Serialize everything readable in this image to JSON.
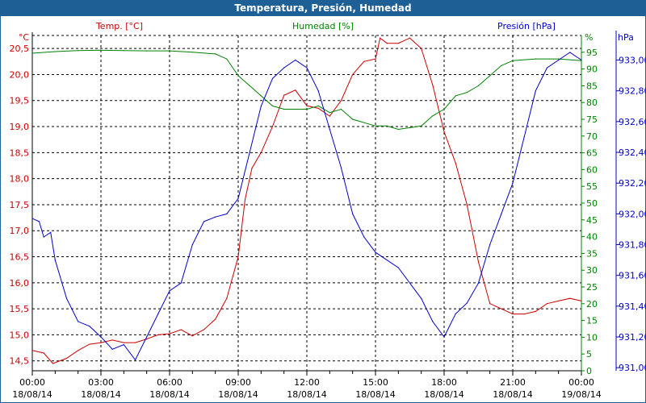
{
  "window": {
    "title": "Temperatura, Presión, Humedad"
  },
  "chart_data": {
    "type": "line",
    "title": "Temperatura, Presión, Humedad",
    "xlabel": "",
    "x_ticks": [
      {
        "time": "00:00",
        "date": "18/08/14"
      },
      {
        "time": "03:00",
        "date": "18/08/14"
      },
      {
        "time": "06:00",
        "date": "18/08/14"
      },
      {
        "time": "09:00",
        "date": "18/08/14"
      },
      {
        "time": "12:00",
        "date": "18/08/14"
      },
      {
        "time": "15:00",
        "date": "18/08/14"
      },
      {
        "time": "18:00",
        "date": "18/08/14"
      },
      {
        "time": "21:00",
        "date": "18/08/14"
      },
      {
        "time": "00:00",
        "date": "19/08/14"
      }
    ],
    "xlim_hours": [
      0,
      24
    ],
    "grid": true,
    "axes": {
      "temp": {
        "label": "Temp. [°C]",
        "unit": "°C",
        "ylim": [
          14.31,
          20.75
        ],
        "ticks": [
          "14,5",
          "15,0",
          "15,5",
          "16,0",
          "16,5",
          "17,0",
          "17,5",
          "18,0",
          "18,5",
          "19,0",
          "19,5",
          "20,0",
          "20,5"
        ],
        "color": "#d00000"
      },
      "hum": {
        "label": "Humedad [%]",
        "unit": "%",
        "ylim": [
          0,
          100
        ],
        "ticks": [
          "0",
          "5",
          "10",
          "15",
          "20",
          "25",
          "30",
          "35",
          "40",
          "45",
          "50",
          "55",
          "60",
          "65",
          "70",
          "75",
          "80",
          "85",
          "90",
          "95"
        ],
        "color": "#008000"
      },
      "pres": {
        "label": "Presión [hPa]",
        "unit": "hPa",
        "ylim": [
          930.98,
          933.16
        ],
        "ticks": [
          "931,00",
          "931,20",
          "931,40",
          "931,60",
          "931,80",
          "932,00",
          "932,20",
          "932,40",
          "932,60",
          "932,80",
          "933,00"
        ],
        "color": "#0000cc"
      }
    },
    "series": [
      {
        "name": "Temp. [°C]",
        "axis": "temp",
        "color": "#cc0000",
        "x": [
          0,
          0.5,
          0.9,
          1.5,
          2,
          2.5,
          3,
          3.5,
          4,
          4.5,
          5,
          5.5,
          6,
          6.5,
          7,
          7.5,
          8,
          8.5,
          9,
          9.3,
          9.6,
          10,
          10.5,
          11,
          11.5,
          12,
          12.5,
          13,
          13.5,
          14,
          14.5,
          15,
          15.2,
          15.5,
          16,
          16.5,
          17,
          17.5,
          18,
          18.5,
          19,
          19.5,
          20,
          20.5,
          21,
          21.5,
          22,
          22.5,
          23,
          23.5,
          24
        ],
        "y": [
          14.7,
          14.65,
          14.45,
          14.55,
          14.7,
          14.82,
          14.85,
          14.9,
          14.85,
          14.85,
          14.92,
          15.0,
          15.02,
          15.1,
          14.98,
          15.1,
          15.3,
          15.7,
          16.5,
          17.6,
          18.2,
          18.5,
          19.0,
          19.6,
          19.7,
          19.4,
          19.35,
          19.2,
          19.5,
          20.0,
          20.25,
          20.3,
          20.7,
          20.6,
          20.6,
          20.7,
          20.5,
          19.8,
          18.9,
          18.3,
          17.5,
          16.4,
          15.6,
          15.5,
          15.4,
          15.4,
          15.45,
          15.6,
          15.65,
          15.7,
          15.65
        ]
      },
      {
        "name": "Humedad [%]",
        "axis": "hum",
        "color": "#008000",
        "x": [
          0,
          1,
          2,
          3,
          4,
          5,
          6,
          7,
          8,
          8.5,
          9,
          9.5,
          10,
          10.5,
          11,
          12,
          12.5,
          13,
          13.5,
          14,
          15,
          15.5,
          16,
          16.5,
          17,
          17.5,
          18,
          18.5,
          19,
          19.5,
          20,
          20.5,
          21,
          22,
          23,
          24
        ],
        "y": [
          94.7,
          95.2,
          95.5,
          95.6,
          95.5,
          95.4,
          95.4,
          95,
          94.5,
          93,
          88,
          85,
          82,
          79,
          78,
          78,
          79,
          77,
          78,
          75,
          73,
          73,
          72,
          72.5,
          73,
          76,
          78,
          82,
          83,
          85,
          88,
          91,
          92.5,
          93,
          93,
          92.5
        ]
      },
      {
        "name": "Presión [hPa]",
        "axis": "pres",
        "color": "#0000cc",
        "x": [
          0,
          0.3,
          0.5,
          0.8,
          1,
          1.5,
          2,
          2.5,
          3,
          3.5,
          4,
          4.5,
          5,
          5.5,
          6,
          6.5,
          7,
          7.5,
          8,
          8.5,
          9,
          9.5,
          10,
          10.5,
          11,
          11.5,
          12,
          12.5,
          13,
          13.5,
          14,
          14.5,
          15,
          16,
          17,
          17.5,
          18,
          18.5,
          19,
          19.5,
          20,
          20.5,
          21,
          21.5,
          22,
          22.5,
          23,
          23.5,
          24
        ],
        "y": [
          931.97,
          931.95,
          931.85,
          931.88,
          931.7,
          931.45,
          931.3,
          931.27,
          931.2,
          931.12,
          931.15,
          931.05,
          931.2,
          931.35,
          931.5,
          931.55,
          931.8,
          931.95,
          931.98,
          932.0,
          932.1,
          932.4,
          932.7,
          932.88,
          932.95,
          933.0,
          932.95,
          932.8,
          932.55,
          932.3,
          932.0,
          931.85,
          931.75,
          931.65,
          931.45,
          931.3,
          931.2,
          931.35,
          931.42,
          931.55,
          931.8,
          932.0,
          932.2,
          932.5,
          932.8,
          932.95,
          933.0,
          933.05,
          933.0
        ]
      }
    ]
  }
}
